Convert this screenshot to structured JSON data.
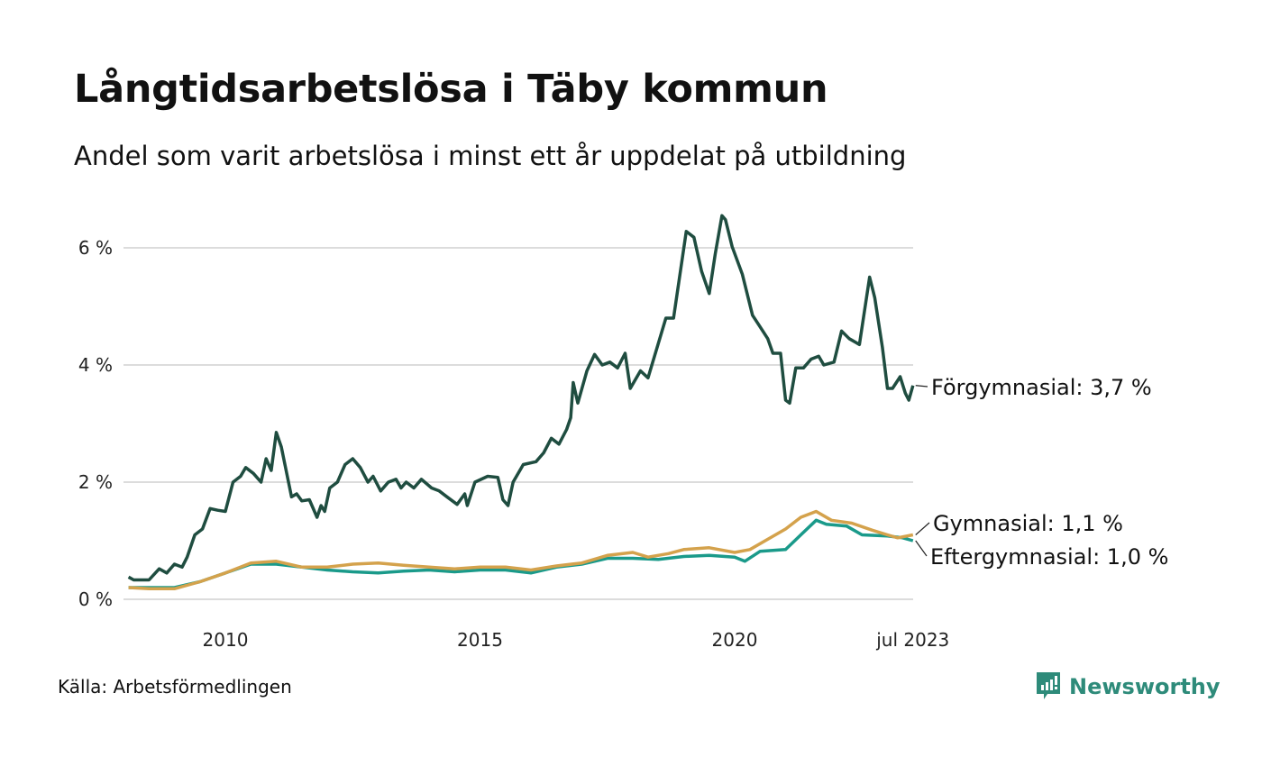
{
  "title": "Långtidsarbetslösa i Täby kommun",
  "subtitle": "Andel som varit arbetslösa i minst ett år uppdelat på utbildning",
  "source": "Källa: Arbetsförmedlingen",
  "logo": {
    "text": "Newsworthy",
    "color": "#2e8b7a"
  },
  "chart_data": {
    "type": "line",
    "title": "Långtidsarbetslösa i Täby kommun",
    "xlabel": "",
    "ylabel": "",
    "xlim": [
      2008.1,
      2023.5
    ],
    "ylim": [
      0,
      6.6
    ],
    "grid": true,
    "y_ticks": [
      {
        "value": 0,
        "label": "0 %"
      },
      {
        "value": 2,
        "label": "2 %"
      },
      {
        "value": 4,
        "label": "4 %"
      },
      {
        "value": 6,
        "label": "6 %"
      }
    ],
    "x_ticks": [
      {
        "value": 2010,
        "label": "2010"
      },
      {
        "value": 2015,
        "label": "2015"
      },
      {
        "value": 2020,
        "label": "2020"
      },
      {
        "value": 2023.5,
        "label": "jul 2023"
      }
    ],
    "series": [
      {
        "name": "Förgymnasial",
        "end_label": "Förgymnasial: 3,7 %",
        "color": "#1f4d40",
        "points": [
          [
            2008.1,
            0.38
          ],
          [
            2008.2,
            0.33
          ],
          [
            2008.5,
            0.33
          ],
          [
            2008.7,
            0.52
          ],
          [
            2008.85,
            0.45
          ],
          [
            2009.0,
            0.6
          ],
          [
            2009.15,
            0.55
          ],
          [
            2009.25,
            0.72
          ],
          [
            2009.4,
            1.1
          ],
          [
            2009.55,
            1.2
          ],
          [
            2009.7,
            1.55
          ],
          [
            2009.85,
            1.52
          ],
          [
            2010.0,
            1.5
          ],
          [
            2010.15,
            2.0
          ],
          [
            2010.3,
            2.1
          ],
          [
            2010.4,
            2.25
          ],
          [
            2010.55,
            2.15
          ],
          [
            2010.7,
            2.0
          ],
          [
            2010.8,
            2.4
          ],
          [
            2010.9,
            2.2
          ],
          [
            2011.0,
            2.85
          ],
          [
            2011.1,
            2.6
          ],
          [
            2011.3,
            1.75
          ],
          [
            2011.4,
            1.8
          ],
          [
            2011.5,
            1.68
          ],
          [
            2011.65,
            1.7
          ],
          [
            2011.8,
            1.4
          ],
          [
            2011.88,
            1.6
          ],
          [
            2011.95,
            1.5
          ],
          [
            2012.05,
            1.9
          ],
          [
            2012.2,
            2.0
          ],
          [
            2012.35,
            2.3
          ],
          [
            2012.5,
            2.4
          ],
          [
            2012.65,
            2.25
          ],
          [
            2012.8,
            2.0
          ],
          [
            2012.9,
            2.1
          ],
          [
            2013.05,
            1.85
          ],
          [
            2013.2,
            2.0
          ],
          [
            2013.35,
            2.05
          ],
          [
            2013.45,
            1.9
          ],
          [
            2013.55,
            2.0
          ],
          [
            2013.7,
            1.9
          ],
          [
            2013.85,
            2.05
          ],
          [
            2014.05,
            1.9
          ],
          [
            2014.2,
            1.85
          ],
          [
            2014.35,
            1.75
          ],
          [
            2014.55,
            1.62
          ],
          [
            2014.7,
            1.8
          ],
          [
            2014.75,
            1.6
          ],
          [
            2014.9,
            2.0
          ],
          [
            2015.15,
            2.1
          ],
          [
            2015.35,
            2.08
          ],
          [
            2015.45,
            1.7
          ],
          [
            2015.55,
            1.6
          ],
          [
            2015.65,
            2.0
          ],
          [
            2015.85,
            2.3
          ],
          [
            2016.1,
            2.35
          ],
          [
            2016.25,
            2.5
          ],
          [
            2016.4,
            2.75
          ],
          [
            2016.55,
            2.65
          ],
          [
            2016.7,
            2.9
          ],
          [
            2016.78,
            3.1
          ],
          [
            2016.83,
            3.7
          ],
          [
            2016.92,
            3.35
          ],
          [
            2017.1,
            3.9
          ],
          [
            2017.25,
            4.18
          ],
          [
            2017.4,
            4.0
          ],
          [
            2017.55,
            4.05
          ],
          [
            2017.7,
            3.95
          ],
          [
            2017.85,
            4.2
          ],
          [
            2017.95,
            3.6
          ],
          [
            2018.15,
            3.9
          ],
          [
            2018.3,
            3.78
          ],
          [
            2018.65,
            4.8
          ],
          [
            2018.8,
            4.8
          ],
          [
            2019.05,
            6.28
          ],
          [
            2019.2,
            6.18
          ],
          [
            2019.35,
            5.6
          ],
          [
            2019.5,
            5.22
          ],
          [
            2019.62,
            5.9
          ],
          [
            2019.75,
            6.55
          ],
          [
            2019.82,
            6.48
          ],
          [
            2019.95,
            6.02
          ],
          [
            2020.15,
            5.55
          ],
          [
            2020.35,
            4.85
          ],
          [
            2020.5,
            4.65
          ],
          [
            2020.65,
            4.45
          ],
          [
            2020.75,
            4.2
          ],
          [
            2020.9,
            4.2
          ],
          [
            2021.0,
            3.4
          ],
          [
            2021.08,
            3.35
          ],
          [
            2021.2,
            3.95
          ],
          [
            2021.35,
            3.95
          ],
          [
            2021.5,
            4.1
          ],
          [
            2021.65,
            4.15
          ],
          [
            2021.75,
            4.0
          ],
          [
            2021.95,
            4.05
          ],
          [
            2022.1,
            4.58
          ],
          [
            2022.25,
            4.45
          ],
          [
            2022.45,
            4.35
          ],
          [
            2022.65,
            5.5
          ],
          [
            2022.75,
            5.15
          ],
          [
            2022.9,
            4.3
          ],
          [
            2023.0,
            3.6
          ],
          [
            2023.1,
            3.6
          ],
          [
            2023.25,
            3.8
          ],
          [
            2023.35,
            3.52
          ],
          [
            2023.42,
            3.4
          ],
          [
            2023.5,
            3.65
          ]
        ]
      },
      {
        "name": "Gymnasial",
        "end_label": "Gymnasial: 1,1 %",
        "color": "#d4a24c",
        "points": [
          [
            2008.1,
            0.2
          ],
          [
            2008.5,
            0.18
          ],
          [
            2009.0,
            0.18
          ],
          [
            2009.5,
            0.3
          ],
          [
            2010.0,
            0.45
          ],
          [
            2010.5,
            0.62
          ],
          [
            2011.0,
            0.65
          ],
          [
            2011.5,
            0.55
          ],
          [
            2012.0,
            0.55
          ],
          [
            2012.5,
            0.6
          ],
          [
            2013.0,
            0.62
          ],
          [
            2013.5,
            0.58
          ],
          [
            2014.0,
            0.55
          ],
          [
            2014.5,
            0.52
          ],
          [
            2015.0,
            0.55
          ],
          [
            2015.5,
            0.55
          ],
          [
            2016.0,
            0.5
          ],
          [
            2016.5,
            0.57
          ],
          [
            2017.0,
            0.62
          ],
          [
            2017.5,
            0.75
          ],
          [
            2018.0,
            0.8
          ],
          [
            2018.3,
            0.72
          ],
          [
            2018.7,
            0.78
          ],
          [
            2019.0,
            0.85
          ],
          [
            2019.5,
            0.88
          ],
          [
            2020.0,
            0.8
          ],
          [
            2020.3,
            0.85
          ],
          [
            2020.6,
            1.0
          ],
          [
            2021.0,
            1.2
          ],
          [
            2021.3,
            1.4
          ],
          [
            2021.6,
            1.5
          ],
          [
            2021.9,
            1.35
          ],
          [
            2022.3,
            1.3
          ],
          [
            2022.7,
            1.18
          ],
          [
            2023.0,
            1.1
          ],
          [
            2023.2,
            1.05
          ],
          [
            2023.5,
            1.1
          ]
        ]
      },
      {
        "name": "Eftergymnasial",
        "end_label": "Eftergymnasial: 1,0 %",
        "color": "#1a9a8a",
        "points": [
          [
            2008.1,
            0.2
          ],
          [
            2008.5,
            0.2
          ],
          [
            2009.0,
            0.2
          ],
          [
            2009.5,
            0.3
          ],
          [
            2010.0,
            0.45
          ],
          [
            2010.5,
            0.6
          ],
          [
            2011.0,
            0.6
          ],
          [
            2011.5,
            0.55
          ],
          [
            2012.0,
            0.5
          ],
          [
            2012.5,
            0.47
          ],
          [
            2013.0,
            0.45
          ],
          [
            2013.5,
            0.48
          ],
          [
            2014.0,
            0.5
          ],
          [
            2014.5,
            0.47
          ],
          [
            2015.0,
            0.5
          ],
          [
            2015.5,
            0.5
          ],
          [
            2016.0,
            0.45
          ],
          [
            2016.5,
            0.55
          ],
          [
            2017.0,
            0.6
          ],
          [
            2017.5,
            0.7
          ],
          [
            2018.0,
            0.7
          ],
          [
            2018.5,
            0.68
          ],
          [
            2019.0,
            0.73
          ],
          [
            2019.5,
            0.75
          ],
          [
            2020.0,
            0.72
          ],
          [
            2020.2,
            0.65
          ],
          [
            2020.5,
            0.82
          ],
          [
            2021.0,
            0.85
          ],
          [
            2021.3,
            1.1
          ],
          [
            2021.6,
            1.35
          ],
          [
            2021.8,
            1.28
          ],
          [
            2022.2,
            1.25
          ],
          [
            2022.5,
            1.1
          ],
          [
            2023.0,
            1.08
          ],
          [
            2023.3,
            1.05
          ],
          [
            2023.5,
            1.0
          ]
        ]
      }
    ]
  }
}
